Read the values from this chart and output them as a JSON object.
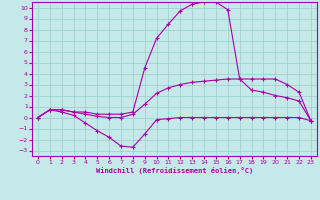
{
  "xlabel": "Windchill (Refroidissement éolien,°C)",
  "xlim": [
    -0.5,
    23.5
  ],
  "ylim": [
    -3.5,
    10.5
  ],
  "xticks": [
    0,
    1,
    2,
    3,
    4,
    5,
    6,
    7,
    8,
    9,
    10,
    11,
    12,
    13,
    14,
    15,
    16,
    17,
    18,
    19,
    20,
    21,
    22,
    23
  ],
  "yticks": [
    -3,
    -2,
    -1,
    0,
    1,
    2,
    3,
    4,
    5,
    6,
    7,
    8,
    9,
    10
  ],
  "bg_color": "#c5e8e8",
  "line_color": "#aa00aa",
  "grid_color": "#99cccc",
  "line1_x": [
    0,
    1,
    2,
    3,
    4,
    5,
    6,
    7,
    8,
    9,
    10,
    11,
    12,
    13,
    14,
    15,
    16,
    17,
    18,
    19,
    20,
    21,
    22,
    23
  ],
  "line1_y": [
    0.0,
    0.7,
    0.5,
    0.2,
    -0.5,
    -1.2,
    -1.8,
    -2.6,
    -2.7,
    -1.5,
    -0.2,
    -0.1,
    0.0,
    0.0,
    0.0,
    0.0,
    0.0,
    0.0,
    0.0,
    0.0,
    0.0,
    0.0,
    0.0,
    -0.3
  ],
  "line2_x": [
    0,
    1,
    2,
    3,
    4,
    5,
    6,
    7,
    8,
    9,
    10,
    11,
    12,
    13,
    14,
    15,
    16,
    17,
    18,
    19,
    20,
    21,
    22,
    23
  ],
  "line2_y": [
    0.0,
    0.7,
    0.7,
    0.5,
    0.3,
    0.1,
    0.0,
    0.0,
    0.3,
    1.2,
    2.2,
    2.7,
    3.0,
    3.2,
    3.3,
    3.4,
    3.5,
    3.5,
    3.5,
    3.5,
    3.5,
    3.0,
    2.3,
    -0.3
  ],
  "line3_x": [
    0,
    1,
    2,
    3,
    4,
    5,
    6,
    7,
    8,
    9,
    10,
    11,
    12,
    13,
    14,
    15,
    16,
    17,
    18,
    19,
    20,
    21,
    22,
    23
  ],
  "line3_y": [
    0.0,
    0.7,
    0.7,
    0.5,
    0.5,
    0.3,
    0.3,
    0.3,
    0.5,
    4.5,
    7.2,
    8.5,
    9.7,
    10.3,
    10.5,
    10.5,
    9.8,
    3.5,
    2.5,
    2.3,
    2.0,
    1.8,
    1.5,
    -0.3
  ]
}
